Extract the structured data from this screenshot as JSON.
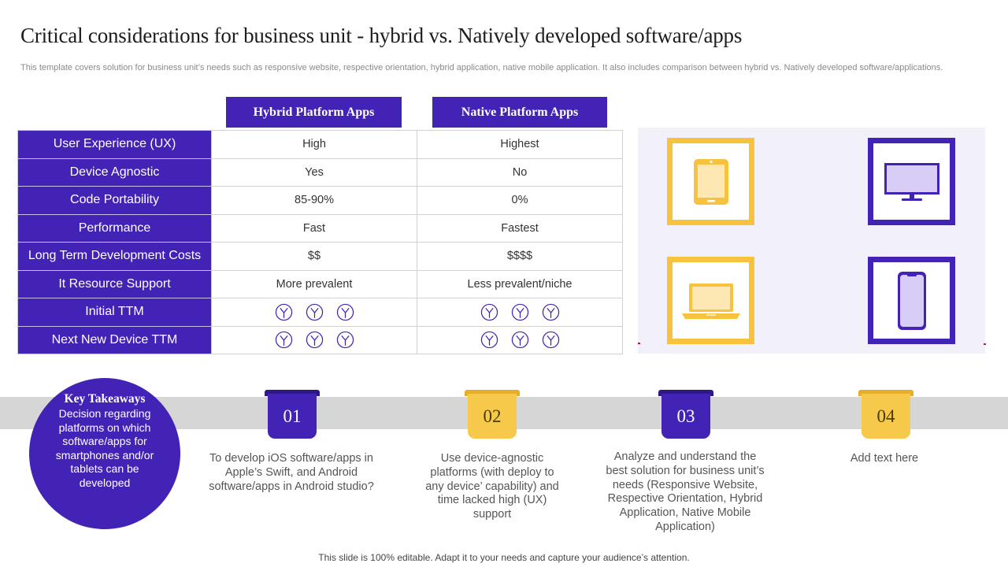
{
  "slide": {
    "title": "Critical considerations for business unit - hybrid vs. Natively developed software/apps",
    "subtitle": "This template covers  solution for business unit’s needs such as responsive website, respective orientation, hybrid application, native mobile application. It also includes comparison between hybrid vs. Natively developed software/applications.",
    "footer": "This slide is 100% editable. Adapt it to your needs and capture your audience’s attention."
  },
  "comparison": {
    "columns": [
      "Hybrid Platform Apps",
      "Native Platform Apps"
    ],
    "rows": [
      {
        "label": "User Experience (UX)",
        "hybrid": "High",
        "native": "Highest"
      },
      {
        "label": "Device Agnostic",
        "hybrid": "Yes",
        "native": "No"
      },
      {
        "label": "Code Portability",
        "hybrid": "85-90%",
        "native": "0%"
      },
      {
        "label": "Performance",
        "hybrid": "Fast",
        "native": "Fastest"
      },
      {
        "label": "Long Term Development Costs",
        "hybrid": "$$",
        "native": "$$$$"
      },
      {
        "label": "It Resource Support",
        "hybrid": "More prevalent",
        "native": "Less prevalent/niche"
      },
      {
        "label": "Initial TTM",
        "hybrid_icons": 3,
        "native_icons": 3
      },
      {
        "label": "Next New Device TTM",
        "hybrid_icons": 3,
        "native_icons": 3
      }
    ],
    "icon": "stopwatch-icon"
  },
  "devices": [
    {
      "icon": "tablet-icon",
      "frame_color": "#f7c23d"
    },
    {
      "icon": "monitor-icon",
      "frame_color": "#4322b6"
    },
    {
      "icon": "laptop-icon",
      "frame_color": "#f7c23d"
    },
    {
      "icon": "smartphone-icon",
      "frame_color": "#4322b6"
    }
  ],
  "key_takeaways": {
    "title": "Key Takeaways",
    "text": "Decision regarding platforms on which software/apps for smartphones and/or tablets can be developed"
  },
  "steps": [
    {
      "number": "01",
      "color": "purple",
      "text": "To develop iOS software/apps in Apple’s Swift, and Android software/apps in Android studio?"
    },
    {
      "number": "02",
      "color": "yellow",
      "text": "Use device-agnostic platforms (with deploy to any device’ capability) and time lacked high (UX) support"
    },
    {
      "number": "03",
      "color": "purple",
      "text": "Analyze and understand the best solution for business unit’s needs (Responsive Website, Respective Orientation, Hybrid Application, Native Mobile Application)"
    },
    {
      "number": "04",
      "color": "yellow",
      "text": "Add text here"
    }
  ],
  "colors": {
    "primary": "#4322b6",
    "accent": "#f7c23d",
    "band": "#d6d6d6",
    "panel": "#f2f1fa"
  }
}
